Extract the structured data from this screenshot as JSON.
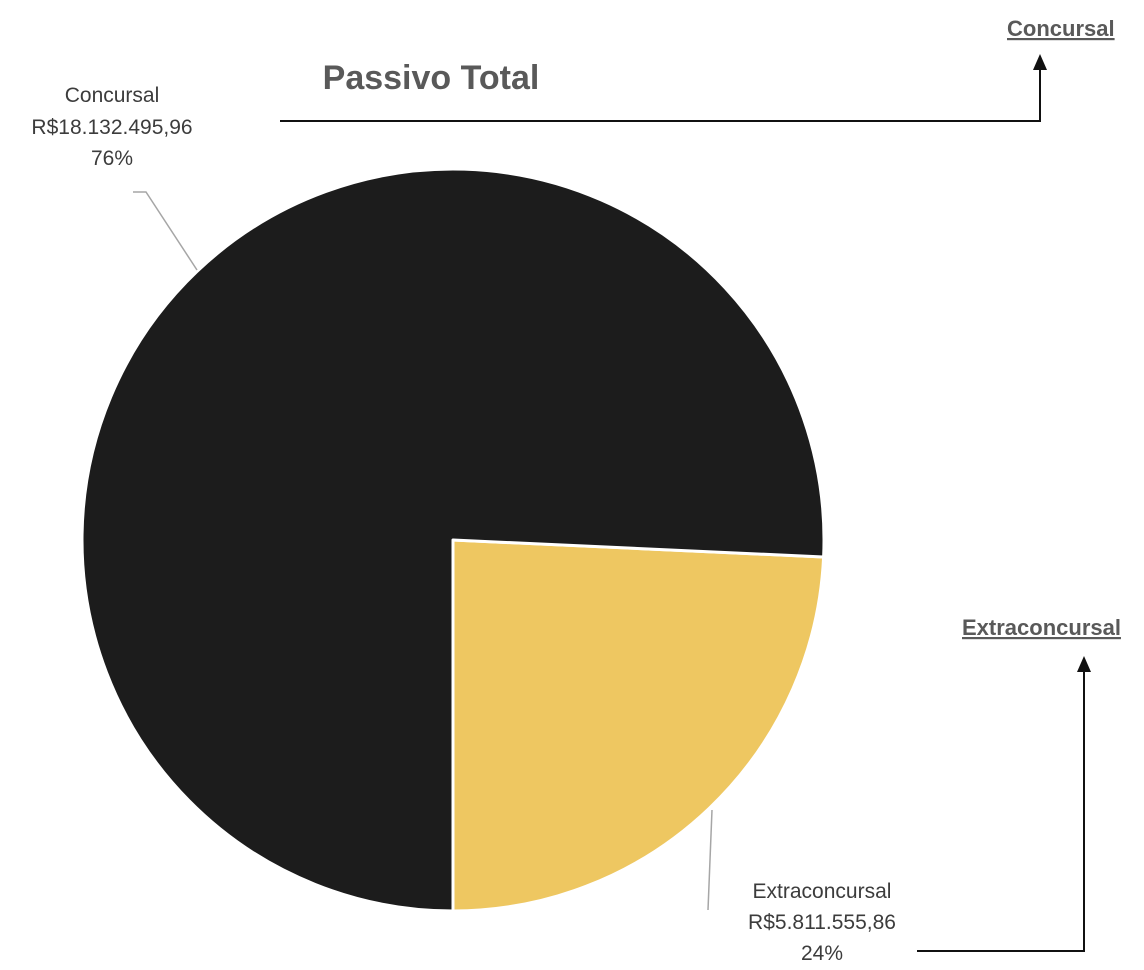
{
  "chart_data": {
    "type": "pie",
    "title": "Passivo Total",
    "slices": [
      {
        "name": "Concursal",
        "value_text": "R$18.132.495,96",
        "value": 18132495.96,
        "percent_text": "76%",
        "color": "#1c1c1c"
      },
      {
        "name": "Extraconcursal",
        "value_text": "R$5.811.555,86",
        "value": 5811555.86,
        "percent_text": "24%",
        "color": "#eec761"
      }
    ],
    "legend": [
      "Concursal",
      "Extraconcursal"
    ],
    "legend_placement": "right"
  }
}
